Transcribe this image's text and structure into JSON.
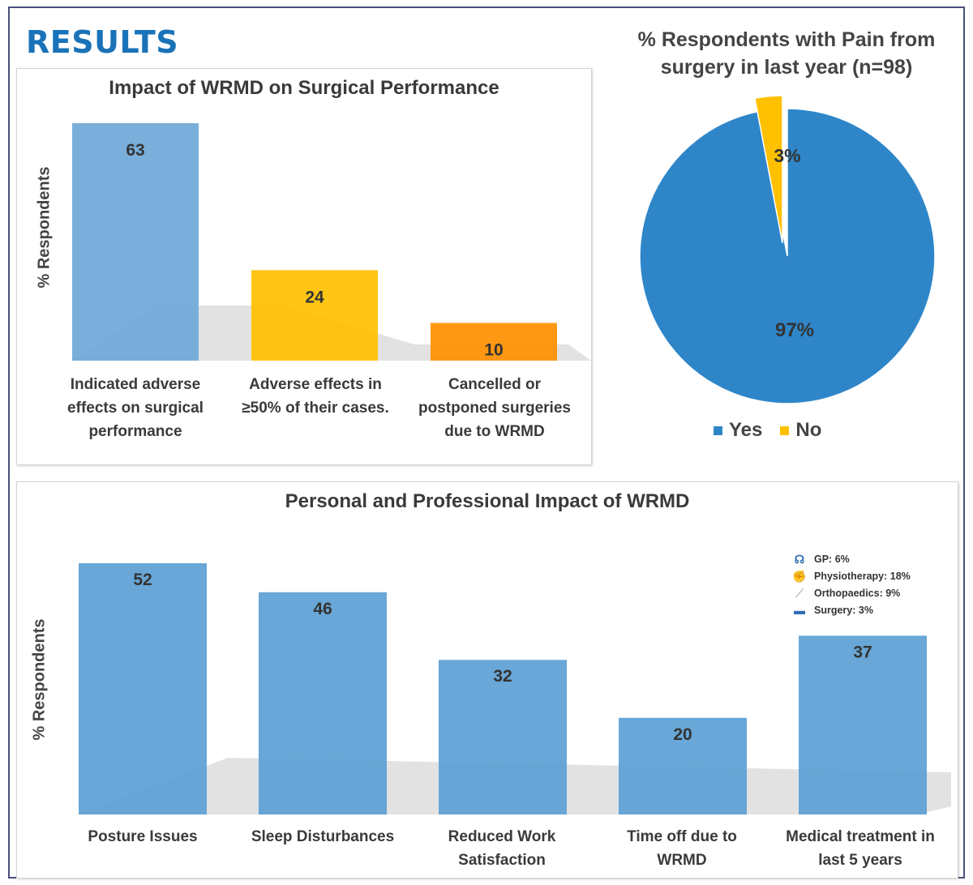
{
  "heading": "RESULTS",
  "chart_data": [
    {
      "type": "bar",
      "title": "Impact of WRMD on Surgical Performance",
      "ylabel": "% Respondents",
      "xlabel": "",
      "categories": [
        "Indicated adverse\neffects on surgical\nperformance",
        "Adverse effects in\n≥50% of their cases.",
        "Cancelled or\npostponed surgeries\ndue to WRMD"
      ],
      "values": [
        63,
        24,
        10
      ],
      "colors": [
        "#6fa8d8",
        "#ffc000",
        "#ff9000"
      ],
      "ylim": [
        0,
        63
      ]
    },
    {
      "type": "pie",
      "title": "% Respondents with Pain from\nsurgery in last year (n=98)",
      "labels": [
        "Yes",
        "No"
      ],
      "values": [
        97,
        3
      ],
      "value_labels": [
        "97%",
        "3%"
      ],
      "colors": [
        "#2e86c9",
        "#ffc000"
      ],
      "legend": "bottom"
    },
    {
      "type": "bar",
      "title": "Personal and Professional Impact of WRMD",
      "ylabel": "% Respondents",
      "xlabel": "",
      "categories": [
        "Posture Issues",
        "Sleep Disturbances",
        "Reduced Work\nSatisfaction",
        "Time off due to\nWRMD",
        "Medical treatment in\nlast 5 years"
      ],
      "values": [
        52,
        46,
        32,
        20,
        37
      ],
      "colors": [
        "#5b9fd4"
      ],
      "ylim": [
        0,
        52
      ]
    }
  ],
  "treatments": [
    {
      "label": "GP: 6%",
      "icon": "stethoscope-icon"
    },
    {
      "label": "Physiotherapy: 18%",
      "icon": "muscle-arm-icon"
    },
    {
      "label": "Orthopaedics: 9%",
      "icon": "bone-icon"
    },
    {
      "label": "Surgery: 3%",
      "icon": "hospital-bed-icon"
    }
  ]
}
